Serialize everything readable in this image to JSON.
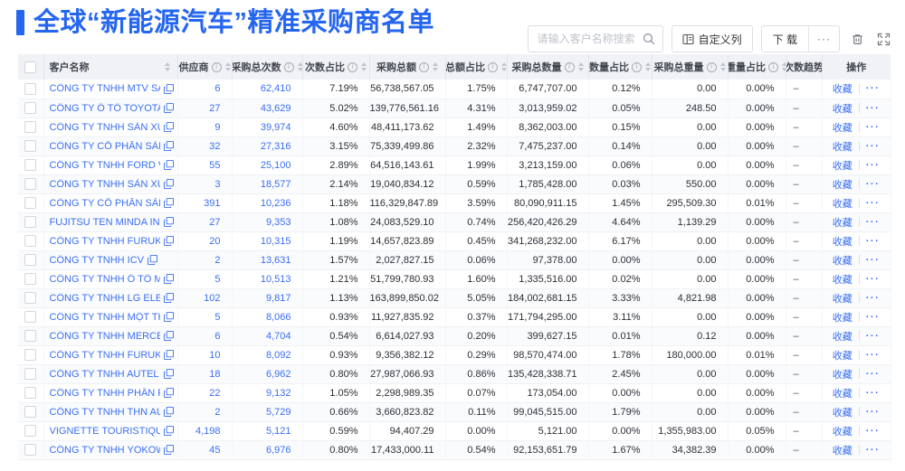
{
  "page": {
    "title": "全球“新能源汽车”精准采购商名单"
  },
  "toolbar": {
    "search_placeholder": "请输入客户名称搜索",
    "customize_columns_label": "自定义列",
    "download_label": "下 载",
    "more_label": "···"
  },
  "table": {
    "columns": [
      {
        "key": "customer-name",
        "label": "客户名称",
        "info": false,
        "sort": true
      },
      {
        "key": "supplier-count",
        "label": "供应商",
        "info": true,
        "sort": true
      },
      {
        "key": "purchase-times",
        "label": "采购总次数",
        "info": true,
        "sort": true
      },
      {
        "key": "times-ratio",
        "label": "次数占比",
        "info": true,
        "sort": true
      },
      {
        "key": "purchase-amount",
        "label": "采购总额",
        "info": true,
        "sort": true
      },
      {
        "key": "amount-ratio",
        "label": "总额占比",
        "info": true,
        "sort": true
      },
      {
        "key": "purchase-quantity",
        "label": "采购总数量",
        "info": true,
        "sort": true
      },
      {
        "key": "quantity-ratio",
        "label": "数量占比",
        "info": true,
        "sort": true
      },
      {
        "key": "purchase-weight",
        "label": "采购总重量",
        "info": true,
        "sort": true
      },
      {
        "key": "weight-ratio",
        "label": "重量占比",
        "info": true,
        "sort": true
      },
      {
        "key": "times-trend",
        "label": "次数趋势",
        "info": false,
        "sort": false
      },
      {
        "key": "operations",
        "label": "操作",
        "info": false,
        "sort": false
      }
    ],
    "actions": {
      "favorite_label": "收藏",
      "more_label": "···"
    },
    "rows": [
      {
        "name": "CÔNG TY TNHH MTV SẢN XUẤ...",
        "suppliers": "6",
        "times": "62,410",
        "times_ratio": "7.19%",
        "amount": "56,738,567.05",
        "amount_ratio": "1.75%",
        "quantity": "6,747,707.00",
        "quantity_ratio": "0.12%",
        "weight": "0.00",
        "weight_ratio": "0.00%",
        "trend": "–"
      },
      {
        "name": "CÔNG TY Ô TÔ TOYOTA VIỆT ...",
        "suppliers": "27",
        "times": "43,629",
        "times_ratio": "5.02%",
        "amount": "139,776,561.16",
        "amount_ratio": "4.31%",
        "quantity": "3,013,959.02",
        "quantity_ratio": "0.05%",
        "weight": "248.50",
        "weight_ratio": "0.00%",
        "trend": "–"
      },
      {
        "name": "CÔNG TY TNHH SẢN XUẤT VÀ ...",
        "suppliers": "9",
        "times": "39,974",
        "times_ratio": "4.60%",
        "amount": "48,411,173.62",
        "amount_ratio": "1.49%",
        "quantity": "8,362,003.00",
        "quantity_ratio": "0.15%",
        "weight": "0.00",
        "weight_ratio": "0.00%",
        "trend": "–"
      },
      {
        "name": "CÔNG TY CỔ PHẦN SẢN XUẤT...",
        "suppliers": "32",
        "times": "27,316",
        "times_ratio": "3.15%",
        "amount": "75,339,499.86",
        "amount_ratio": "2.32%",
        "quantity": "7,475,237.00",
        "quantity_ratio": "0.14%",
        "weight": "0.00",
        "weight_ratio": "0.00%",
        "trend": "–"
      },
      {
        "name": "CÔNG TY TNHH FORD VIỆT NAM",
        "suppliers": "55",
        "times": "25,100",
        "times_ratio": "2.89%",
        "amount": "64,516,143.61",
        "amount_ratio": "1.99%",
        "quantity": "3,213,159.00",
        "quantity_ratio": "0.06%",
        "weight": "0.00",
        "weight_ratio": "0.00%",
        "trend": "–"
      },
      {
        "name": "CÔNG TY TNHH SẢN XUẤT VÀ ...",
        "suppliers": "3",
        "times": "18,577",
        "times_ratio": "2.14%",
        "amount": "19,040,834.12",
        "amount_ratio": "0.59%",
        "quantity": "1,785,428.00",
        "quantity_ratio": "0.03%",
        "weight": "550.00",
        "weight_ratio": "0.00%",
        "trend": "–"
      },
      {
        "name": "CÔNG TY CỔ PHẦN SẢN XUẤT...",
        "suppliers": "391",
        "times": "10,236",
        "times_ratio": "1.18%",
        "amount": "116,329,847.89",
        "amount_ratio": "3.59%",
        "quantity": "80,090,911.15",
        "quantity_ratio": "1.45%",
        "weight": "295,509.30",
        "weight_ratio": "0.01%",
        "trend": "–"
      },
      {
        "name": "FUJITSU TEN MINDA INDIA PVT...",
        "suppliers": "27",
        "times": "9,353",
        "times_ratio": "1.08%",
        "amount": "24,083,529.10",
        "amount_ratio": "0.74%",
        "quantity": "256,420,426.29",
        "quantity_ratio": "4.64%",
        "weight": "1,139.29",
        "weight_ratio": "0.00%",
        "trend": "–"
      },
      {
        "name": "CÔNG TY TNHH FURUKAWA A...",
        "suppliers": "20",
        "times": "10,315",
        "times_ratio": "1.19%",
        "amount": "14,657,823.89",
        "amount_ratio": "0.45%",
        "quantity": "341,268,232.00",
        "quantity_ratio": "6.17%",
        "weight": "0.00",
        "weight_ratio": "0.00%",
        "trend": "–"
      },
      {
        "name": "CÔNG TY TNHH ICV",
        "suppliers": "2",
        "times": "13,631",
        "times_ratio": "1.57%",
        "amount": "2,027,827.15",
        "amount_ratio": "0.06%",
        "quantity": "97,378.00",
        "quantity_ratio": "0.00%",
        "weight": "0.00",
        "weight_ratio": "0.00%",
        "trend": "–"
      },
      {
        "name": "CÔNG TY TNHH Ô TÔ MITSUBI...",
        "suppliers": "5",
        "times": "10,513",
        "times_ratio": "1.21%",
        "amount": "51,799,780.93",
        "amount_ratio": "1.60%",
        "quantity": "1,335,516.00",
        "quantity_ratio": "0.02%",
        "weight": "0.00",
        "weight_ratio": "0.00%",
        "trend": "–"
      },
      {
        "name": "CÔNG TY TNHH LG ELECTRON...",
        "suppliers": "102",
        "times": "9,817",
        "times_ratio": "1.13%",
        "amount": "163,899,850.02",
        "amount_ratio": "5.05%",
        "quantity": "184,002,681.15",
        "quantity_ratio": "3.33%",
        "weight": "4,821.98",
        "weight_ratio": "0.00%",
        "trend": "–"
      },
      {
        "name": "CÔNG TY TNHH MỘT THÀNH V...",
        "suppliers": "5",
        "times": "8,066",
        "times_ratio": "0.93%",
        "amount": "11,927,835.92",
        "amount_ratio": "0.37%",
        "quantity": "171,794,295.00",
        "quantity_ratio": "3.11%",
        "weight": "0.00",
        "weight_ratio": "0.00%",
        "trend": "–"
      },
      {
        "name": "CÔNG TY TNHH MERCEDES-B...",
        "suppliers": "6",
        "times": "4,704",
        "times_ratio": "0.54%",
        "amount": "6,614,027.93",
        "amount_ratio": "0.20%",
        "quantity": "399,627.15",
        "quantity_ratio": "0.01%",
        "weight": "0.12",
        "weight_ratio": "0.00%",
        "trend": "–"
      },
      {
        "name": "CÔNG TY TNHH FURUKAWA A...",
        "suppliers": "10",
        "times": "8,092",
        "times_ratio": "0.93%",
        "amount": "9,356,382.12",
        "amount_ratio": "0.29%",
        "quantity": "98,570,474.00",
        "quantity_ratio": "1.78%",
        "weight": "180,000.00",
        "weight_ratio": "0.01%",
        "trend": "–"
      },
      {
        "name": "CÔNG TY TNHH AUTEL VIỆT N...",
        "suppliers": "18",
        "times": "6,962",
        "times_ratio": "0.80%",
        "amount": "27,987,066.93",
        "amount_ratio": "0.86%",
        "quantity": "135,428,338.71",
        "quantity_ratio": "2.45%",
        "weight": "0.00",
        "weight_ratio": "0.00%",
        "trend": "–"
      },
      {
        "name": "CÔNG TY TNHH PHÂN PHỐI T...",
        "suppliers": "22",
        "times": "9,132",
        "times_ratio": "1.05%",
        "amount": "2,298,989.35",
        "amount_ratio": "0.07%",
        "quantity": "173,054.00",
        "quantity_ratio": "0.00%",
        "weight": "0.00",
        "weight_ratio": "0.00%",
        "trend": "–"
      },
      {
        "name": "CÔNG TY TNHH THN AUTOPAR...",
        "suppliers": "2",
        "times": "5,729",
        "times_ratio": "0.66%",
        "amount": "3,660,823.82",
        "amount_ratio": "0.11%",
        "quantity": "99,045,515.00",
        "quantity_ratio": "1.79%",
        "weight": "0.00",
        "weight_ratio": "0.00%",
        "trend": "–"
      },
      {
        "name": "VIGNETTE TOURISTIQUE G UNI...",
        "suppliers": "4,198",
        "times": "5,121",
        "times_ratio": "0.59%",
        "amount": "94,407.29",
        "amount_ratio": "0.00%",
        "quantity": "5,121.00",
        "quantity_ratio": "0.00%",
        "weight": "1,355,983.00",
        "weight_ratio": "0.05%",
        "trend": "–"
      },
      {
        "name": "CÔNG TY TNHH YOKOWO VIỆT...",
        "suppliers": "45",
        "times": "6,976",
        "times_ratio": "0.80%",
        "amount": "17,433,000.11",
        "amount_ratio": "0.54%",
        "quantity": "92,153,651.79",
        "quantity_ratio": "1.67%",
        "weight": "34,382.39",
        "weight_ratio": "0.00%",
        "trend": "–"
      }
    ]
  }
}
